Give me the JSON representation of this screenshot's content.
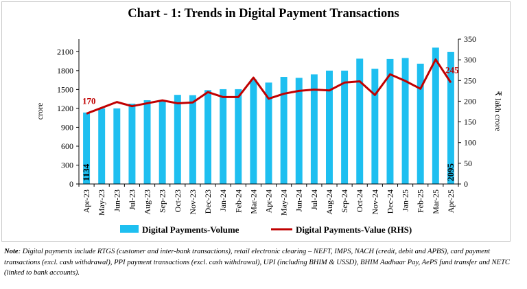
{
  "chart_data": {
    "type": "bar+line",
    "title": "Chart - 1: Trends in Digital Payment Transactions",
    "categories": [
      "Apr-23",
      "May-23",
      "Jun-23",
      "Jul-23",
      "Aug-23",
      "Sep-23",
      "Oct-23",
      "Nov-23",
      "Dec-23",
      "Jan-24",
      "Feb-24",
      "Mar-24",
      "Apr-24",
      "May-24",
      "Jun-24",
      "Jul-24",
      "Aug-24",
      "Sep-24",
      "Oct-24",
      "Nov-24",
      "Dec-24",
      "Jan-25",
      "Feb-25",
      "Mar-25",
      "Apr-25"
    ],
    "series": [
      {
        "name": "Digital Payments-Volume",
        "type": "bar",
        "axis": "left",
        "color": "#1ebff0",
        "values": [
          1134,
          1200,
          1200,
          1275,
          1330,
          1320,
          1415,
          1410,
          1490,
          1505,
          1505,
          1660,
          1610,
          1700,
          1685,
          1740,
          1800,
          1800,
          1990,
          1830,
          1985,
          2000,
          1910,
          2165,
          2095
        ]
      },
      {
        "name": "Digital Payments-Value (RHS)",
        "type": "line",
        "axis": "right",
        "color": "#c00000",
        "values": [
          170,
          184,
          198,
          188,
          195,
          202,
          195,
          197,
          222,
          210,
          210,
          257,
          206,
          218,
          225,
          228,
          226,
          245,
          248,
          215,
          265,
          249,
          230,
          301,
          245
        ]
      }
    ],
    "ylabel": "crore",
    "y2label": "₹ lakh crore",
    "ylim": [
      0,
      2300
    ],
    "y2lim": [
      0,
      350
    ],
    "yticks": [
      "0",
      "300",
      "600",
      "900",
      "1200",
      "1500",
      "1800",
      "2100"
    ],
    "y2ticks": [
      "0",
      "50",
      "100",
      "150",
      "200",
      "250",
      "300",
      "350"
    ],
    "bar_labels": [
      {
        "index": 0,
        "text": "1134"
      },
      {
        "index": 24,
        "text": "2095"
      }
    ],
    "line_labels": [
      {
        "index": 0,
        "text": "170"
      },
      {
        "index": 24,
        "text": "245"
      }
    ],
    "legend_position": "bottom",
    "grid": false
  },
  "note": {
    "label": "Note",
    "text": ": Digital payments include RTGS (customer and inter-bank transactions), retail electronic clearing – NEFT, IMPS, NACH (credit, debit and APBS), card payment transactions (excl. cash withdrawal), PPI payment transactions (excl. cash withdrawal), UPI (including BHIM & USSD), BHIM Aadhaar Pay, AePS fund transfer and NETC (linked to bank accounts)."
  }
}
